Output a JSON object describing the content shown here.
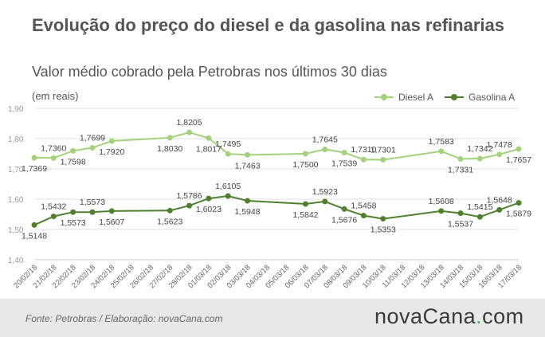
{
  "chart_data": {
    "type": "line",
    "title": "Evolução do preço do diesel e da gasolina nas refinarias",
    "subtitle": "Valor médio cobrado pela Petrobras nos últimos 30 dias",
    "units": "(em reais)",
    "ylim": [
      1.4,
      1.9
    ],
    "yticks": [
      "1,40",
      "1,50",
      "1,60",
      "1,70",
      "1,80",
      "1,90"
    ],
    "grid": true,
    "legend_position": "top-right",
    "categories": [
      "20/02/18",
      "21/02/18",
      "22/02/18",
      "23/02/18",
      "24/02/18",
      "25/02/18",
      "26/02/18",
      "27/02/18",
      "28/02/18",
      "01/03/18",
      "02/03/18",
      "03/03/18",
      "04/03/18",
      "05/03/18",
      "06/03/18",
      "07/03/18",
      "08/03/18",
      "09/03/18",
      "10/03/18",
      "11/03/18",
      "12/03/18",
      "13/03/18",
      "14/03/18",
      "15/03/18",
      "16/03/18",
      "17/03/18"
    ],
    "series": [
      {
        "name": "Diesel A",
        "color": "#a5d17f",
        "points": [
          {
            "x": "20/02/18",
            "y": 1.7369,
            "label": "1,7369",
            "pos": "below"
          },
          {
            "x": "21/02/18",
            "y": 1.736,
            "label": "1,7360",
            "pos": "above"
          },
          {
            "x": "22/02/18",
            "y": 1.7598,
            "label": "1,7598",
            "pos": "below"
          },
          {
            "x": "23/02/18",
            "y": 1.7699,
            "label": "1,7699",
            "pos": "above"
          },
          {
            "x": "24/02/18",
            "y": 1.792,
            "label": "1,7920",
            "pos": "below"
          },
          {
            "x": "27/02/18",
            "y": 1.803,
            "label": "1,8030",
            "pos": "below"
          },
          {
            "x": "28/02/18",
            "y": 1.8205,
            "label": "1,8205",
            "pos": "above"
          },
          {
            "x": "01/03/18",
            "y": 1.8017,
            "label": "1,8017",
            "pos": "below"
          },
          {
            "x": "02/03/18",
            "y": 1.7495,
            "label": "1,7495",
            "pos": "above"
          },
          {
            "x": "03/03/18",
            "y": 1.7463,
            "label": "1,7463",
            "pos": "below"
          },
          {
            "x": "06/03/18",
            "y": 1.75,
            "label": "1,7500",
            "pos": "below"
          },
          {
            "x": "07/03/18",
            "y": 1.7645,
            "label": "1,7645",
            "pos": "above"
          },
          {
            "x": "08/03/18",
            "y": 1.7539,
            "label": "1,7539",
            "pos": "below"
          },
          {
            "x": "09/03/18",
            "y": 1.731,
            "label": "1,7310",
            "pos": "above"
          },
          {
            "x": "10/03/18",
            "y": 1.7301,
            "label": "1,7301",
            "pos": "above"
          },
          {
            "x": "13/03/18",
            "y": 1.7583,
            "label": "1,7583",
            "pos": "above"
          },
          {
            "x": "14/03/18",
            "y": 1.7331,
            "label": "1,7331",
            "pos": "below"
          },
          {
            "x": "15/03/18",
            "y": 1.7342,
            "label": "1,7342",
            "pos": "above"
          },
          {
            "x": "16/03/18",
            "y": 1.7478,
            "label": "1,7478",
            "pos": "above"
          },
          {
            "x": "17/03/18",
            "y": 1.7657,
            "label": "1,7657",
            "pos": "below"
          }
        ]
      },
      {
        "name": "Gasolina A",
        "color": "#4f7f2f",
        "points": [
          {
            "x": "20/02/18",
            "y": 1.5148,
            "label": "1,5148",
            "pos": "below"
          },
          {
            "x": "21/02/18",
            "y": 1.5432,
            "label": "1,5432",
            "pos": "above"
          },
          {
            "x": "22/02/18",
            "y": 1.5573,
            "label": "1,5573",
            "pos": "below"
          },
          {
            "x": "23/02/18",
            "y": 1.5573,
            "label": "1,5573",
            "pos": "above"
          },
          {
            "x": "24/02/18",
            "y": 1.5607,
            "label": "1,5607",
            "pos": "below"
          },
          {
            "x": "27/02/18",
            "y": 1.5623,
            "label": "1,5623",
            "pos": "below"
          },
          {
            "x": "28/02/18",
            "y": 1.5786,
            "label": "1,5786",
            "pos": "above"
          },
          {
            "x": "01/03/18",
            "y": 1.6023,
            "label": "1,6023",
            "pos": "below"
          },
          {
            "x": "02/03/18",
            "y": 1.6105,
            "label": "1,6105",
            "pos": "above"
          },
          {
            "x": "03/03/18",
            "y": 1.5948,
            "label": "1,5948",
            "pos": "below"
          },
          {
            "x": "06/03/18",
            "y": 1.5842,
            "label": "1,5842",
            "pos": "below"
          },
          {
            "x": "07/03/18",
            "y": 1.5923,
            "label": "1,5923",
            "pos": "above"
          },
          {
            "x": "08/03/18",
            "y": 1.5676,
            "label": "1,5676",
            "pos": "below"
          },
          {
            "x": "09/03/18",
            "y": 1.5458,
            "label": "1,5458",
            "pos": "above"
          },
          {
            "x": "10/03/18",
            "y": 1.5353,
            "label": "1,5353",
            "pos": "below"
          },
          {
            "x": "13/03/18",
            "y": 1.5608,
            "label": "1,5608",
            "pos": "above"
          },
          {
            "x": "14/03/18",
            "y": 1.5537,
            "label": "1,5537",
            "pos": "below"
          },
          {
            "x": "15/03/18",
            "y": 1.5415,
            "label": "1,5415",
            "pos": "above"
          },
          {
            "x": "16/03/18",
            "y": 1.5648,
            "label": "1,5648",
            "pos": "above"
          },
          {
            "x": "17/03/18",
            "y": 1.5879,
            "label": "1,5879",
            "pos": "below"
          }
        ]
      }
    ]
  },
  "legend": {
    "diesel": "Diesel A",
    "gasolina": "Gasolina A"
  },
  "footer": {
    "source": "Fonte:  Petrobras  / Elaboração:  novaCana.com",
    "logo_main": "novaCana",
    "logo_dot": ".",
    "logo_tld": "com",
    "logo_dot_color": "#4caf50"
  }
}
